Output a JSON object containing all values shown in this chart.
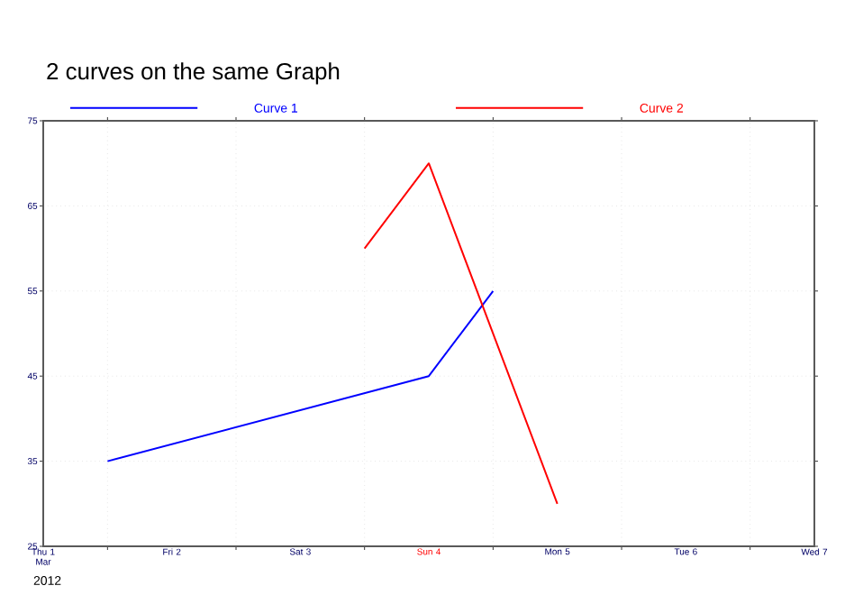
{
  "chart_data": {
    "type": "line",
    "title": "2 curves on the same Graph",
    "xlabel": "2012",
    "series": [
      {
        "name": "Curve 1",
        "color": "#0000ff",
        "x": [
          "2012-03-01T12:00",
          "2012-03-04T00:00",
          "2012-03-04T12:00"
        ],
        "values": [
          35,
          45,
          55
        ]
      },
      {
        "name": "Curve 2",
        "color": "#ff0000",
        "x": [
          "2012-03-03T12:00",
          "2012-03-04T00:00",
          "2012-03-05T00:00"
        ],
        "values": [
          60,
          70,
          30
        ]
      }
    ],
    "xlim": [
      "2012-03-01",
      "2012-03-07"
    ],
    "xticks": [
      {
        "value": "2012-03-01",
        "label": "Thu 1 Mar"
      },
      {
        "value": "2012-03-02",
        "label": "Fri 2"
      },
      {
        "value": "2012-03-03",
        "label": "Sat 3"
      },
      {
        "value": "2012-03-04",
        "label": "Sun 4"
      },
      {
        "value": "2012-03-05",
        "label": "Mon 5"
      },
      {
        "value": "2012-03-06",
        "label": "Tue 6"
      },
      {
        "value": "2012-03-07",
        "label": "Wed 7"
      },
      {
        "value": "2012-03-01T12:00",
        "label": null
      },
      {
        "value": "2012-03-02T12:00",
        "label": null
      },
      {
        "value": "2012-03-03T12:00",
        "label": null
      },
      {
        "value": "2012-03-04T12:00",
        "label": null
      },
      {
        "value": "2012-03-05T12:00",
        "label": null
      },
      {
        "value": "2012-03-06T12:00",
        "label": null
      }
    ],
    "ylim": [
      25,
      75
    ],
    "yticks": [
      25,
      35,
      45,
      55,
      65,
      75
    ],
    "grid": true,
    "legend": "top",
    "marker": "none",
    "line_style": "solid"
  }
}
